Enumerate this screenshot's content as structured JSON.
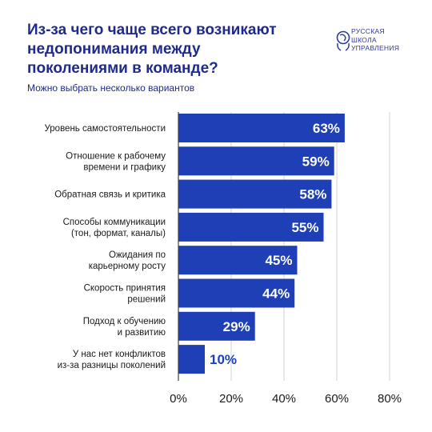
{
  "header": {
    "title_lines": [
      "Из-за чего чаще всего возникают",
      "недопонимания между",
      "поколениями в команде?"
    ],
    "subtitle": "Можно выбрать несколько вариантов"
  },
  "logo": {
    "icon": "globe-wreath-icon",
    "lines": [
      "РУССКАЯ",
      "ШКОЛА",
      "УПРАВЛЕНИЯ"
    ]
  },
  "colors": {
    "accent": "#1f3fb7",
    "title": "#1f2a8a",
    "grid": "#c8c8c8",
    "text": "#1a1a1a"
  },
  "chart_data": {
    "type": "bar",
    "orientation": "horizontal",
    "categories": [
      [
        "Уровень самостоятельности"
      ],
      [
        "Отношение к рабочему",
        "времени и графику"
      ],
      [
        "Обратная связь и критика"
      ],
      [
        "Способы коммуникации",
        "(тон, формат, каналы)"
      ],
      [
        "Ожидания по",
        "карьерному росту"
      ],
      [
        "Скорость принятия",
        "решений"
      ],
      [
        "Подход к обучению",
        "и развитию"
      ],
      [
        "У нас нет конфликтов",
        "из-за разницы поколений"
      ]
    ],
    "values": [
      63,
      59,
      58,
      55,
      45,
      44,
      29,
      10
    ],
    "value_labels": [
      "63%",
      "59%",
      "58%",
      "55%",
      "45%",
      "44%",
      "29%",
      "10%"
    ],
    "xlim": [
      0,
      80
    ],
    "xticks": [
      0,
      20,
      40,
      60,
      80
    ],
    "xtick_labels": [
      "0%",
      "20%",
      "40%",
      "60%",
      "80%"
    ],
    "grid": true,
    "title": "Из-за чего чаще всего возникают недопонимания между поколениями в команде?",
    "subtitle": "Можно выбрать несколько вариантов",
    "xlabel": "",
    "ylabel": ""
  }
}
